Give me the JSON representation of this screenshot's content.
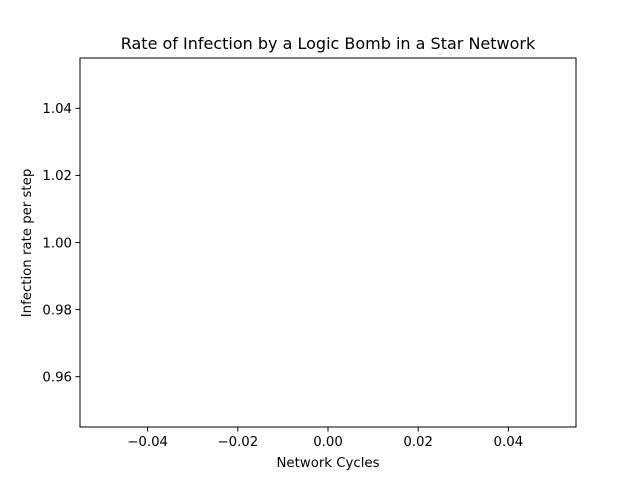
{
  "chart_data": {
    "type": "line",
    "title": "Rate of Infection by a Logic Bomb in a Star Network",
    "xlabel": "Network Cycles",
    "ylabel": "Infection rate per step",
    "xlim": [
      -0.055,
      0.055
    ],
    "ylim": [
      0.945,
      1.055
    ],
    "xticks": [
      -0.04,
      -0.02,
      0.0,
      0.02,
      0.04
    ],
    "xtick_labels": [
      "−0.04",
      "−0.02",
      "0.00",
      "0.02",
      "0.04"
    ],
    "yticks": [
      0.96,
      0.98,
      1.0,
      1.02,
      1.04
    ],
    "ytick_labels": [
      "0.96",
      "0.98",
      "1.00",
      "1.02",
      "1.04"
    ],
    "series": [
      {
        "x": [],
        "y": []
      }
    ],
    "grid": false,
    "legend": false,
    "colors": {
      "frame": "#000000",
      "background": "#ffffff"
    }
  }
}
